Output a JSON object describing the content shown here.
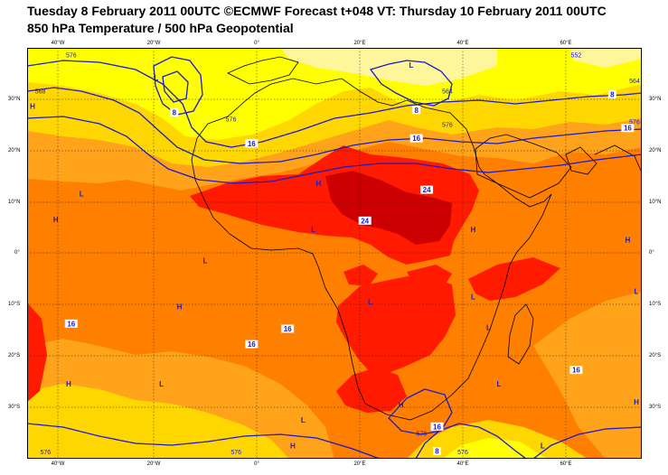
{
  "title": {
    "line1": "Tuesday 8 February 2011 00UTC ©ECMWF Forecast t+048 VT: Thursday 10 February 2011 00UTC",
    "line2": "850 hPa Temperature / 500 hPa Geopotential"
  },
  "axes": {
    "longitude_ticks": [
      "40°W",
      "20°W",
      "0°",
      "20°E",
      "40°E",
      "60°E"
    ],
    "latitude_ticks": [
      "30°N",
      "20°N",
      "10°N",
      "0°",
      "10°S",
      "20°S",
      "30°S"
    ]
  },
  "colors": {
    "background": "#ffffff",
    "temp_lt4": "#fff59a",
    "temp_4_8": "#ffff00",
    "temp_8_12": "#ffd700",
    "temp_12_16": "#ffa31a",
    "temp_16_20": "#ff7f00",
    "temp_20_24": "#ff1a00",
    "temp_gt24": "#cc0000",
    "coastline": "#000000",
    "geopotential_contours": "#1a1ac8",
    "gridlines": "#222222"
  },
  "pressure_centers": [
    {
      "label": "L",
      "lon": -19.5,
      "lat": 33.5
    },
    {
      "label": "H",
      "lon": -44,
      "lat": 28
    },
    {
      "label": "L",
      "lon": 30,
      "lat": 36
    },
    {
      "label": "H",
      "lon": 12,
      "lat": 13
    },
    {
      "label": "L",
      "lon": -34,
      "lat": 11
    },
    {
      "label": "H",
      "lon": -39,
      "lat": 6
    },
    {
      "label": "L",
      "lon": 11,
      "lat": 4
    },
    {
      "label": "L",
      "lon": -10,
      "lat": -2
    },
    {
      "label": "H",
      "lon": 42,
      "lat": 4
    },
    {
      "label": "H",
      "lon": 72,
      "lat": 2
    },
    {
      "label": "H",
      "lon": -15,
      "lat": -11
    },
    {
      "label": "L",
      "lon": 22,
      "lat": -10
    },
    {
      "label": "L",
      "lon": 42,
      "lat": -9
    },
    {
      "label": "L",
      "lon": 45,
      "lat": -15
    },
    {
      "label": "L",
      "lon": 79,
      "lat": -8
    },
    {
      "label": "L",
      "lon": 47,
      "lat": -26
    },
    {
      "label": "L",
      "lon": -18.5,
      "lat": -26
    },
    {
      "label": "H",
      "lon": -36.5,
      "lat": -26
    },
    {
      "label": "H",
      "lon": 28,
      "lat": -30
    },
    {
      "label": "H",
      "lon": 77,
      "lat": -29.5
    },
    {
      "label": "L",
      "lon": 9,
      "lat": -33
    },
    {
      "label": "H",
      "lon": 7,
      "lat": -38
    },
    {
      "label": "L",
      "lon": 55.5,
      "lat": -38
    }
  ],
  "temperature_labels": [
    {
      "text": "8",
      "lon": -16,
      "lat": 27
    },
    {
      "text": "16",
      "lon": -1,
      "lat": 21
    },
    {
      "text": "8",
      "lon": 31,
      "lat": 27.5
    },
    {
      "text": "16",
      "lon": 31,
      "lat": 22
    },
    {
      "text": "8",
      "lon": 69,
      "lat": 30.5
    },
    {
      "text": "16",
      "lon": 72,
      "lat": 24
    },
    {
      "text": "24",
      "lon": 33,
      "lat": 12
    },
    {
      "text": "24",
      "lon": 21,
      "lat": 6
    },
    {
      "text": "16",
      "lon": -36,
      "lat": -14
    },
    {
      "text": "16",
      "lon": 6,
      "lat": -15
    },
    {
      "text": "16",
      "lon": -1,
      "lat": -18
    },
    {
      "text": "16",
      "lon": 62,
      "lat": -23
    },
    {
      "text": "16",
      "lon": 35,
      "lat": -34
    },
    {
      "text": "8",
      "lon": 35,
      "lat": -39
    }
  ],
  "geopotential_labels": [
    {
      "text": "576",
      "lon": -36,
      "lat": 38
    },
    {
      "text": "568",
      "lon": -42,
      "lat": 31
    },
    {
      "text": "576",
      "lon": -5,
      "lat": 25.5
    },
    {
      "text": "552",
      "lon": 62,
      "lat": 38
    },
    {
      "text": "564",
      "lon": 37,
      "lat": 31
    },
    {
      "text": "576",
      "lon": 37,
      "lat": 24.5
    },
    {
      "text": "564",
      "lon": 75,
      "lat": 33
    },
    {
      "text": "576",
      "lon": 75,
      "lat": 25
    },
    {
      "text": "576",
      "lon": 32,
      "lat": -35.5
    },
    {
      "text": "576",
      "lon": -41,
      "lat": -41
    },
    {
      "text": "576",
      "lon": -4,
      "lat": -41
    },
    {
      "text": "576",
      "lon": 40,
      "lat": -40.5
    }
  ]
}
